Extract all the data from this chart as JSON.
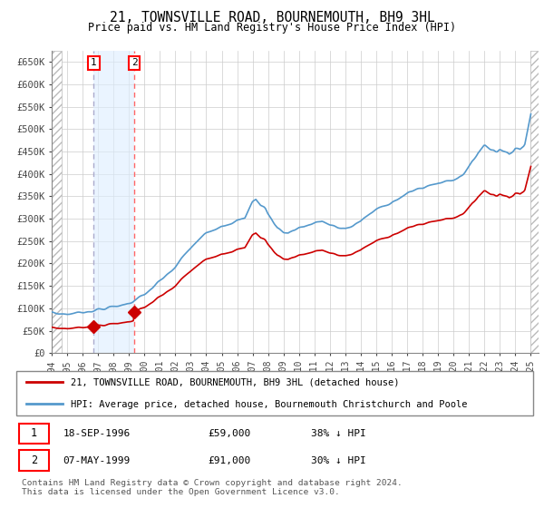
{
  "title": "21, TOWNSVILLE ROAD, BOURNEMOUTH, BH9 3HL",
  "subtitle": "Price paid vs. HM Land Registry's House Price Index (HPI)",
  "ylim": [
    0,
    675000
  ],
  "sale1_date": 1996.72,
  "sale1_price": 59000,
  "sale2_date": 1999.35,
  "sale2_price": 91000,
  "legend_line1": "21, TOWNSVILLE ROAD, BOURNEMOUTH, BH9 3HL (detached house)",
  "legend_line2": "HPI: Average price, detached house, Bournemouth Christchurch and Poole",
  "footnote": "Contains HM Land Registry data © Crown copyright and database right 2024.\nThis data is licensed under the Open Government Licence v3.0.",
  "hpi_color": "#5599cc",
  "price_color": "#cc0000",
  "vline1_color": "#aaaacc",
  "vline2_color": "#ff6666",
  "shade_color": "#ddeeff",
  "grid_color": "#cccccc",
  "background_color": "#ffffff",
  "hpi_knots_x": [
    1994.0,
    1994.5,
    1995.0,
    1995.5,
    1996.0,
    1996.5,
    1997.0,
    1997.5,
    1998.0,
    1998.5,
    1999.0,
    1999.5,
    2000.0,
    2000.5,
    2001.0,
    2001.5,
    2002.0,
    2002.5,
    2003.0,
    2003.5,
    2004.0,
    2004.5,
    2005.0,
    2005.5,
    2006.0,
    2006.5,
    2007.0,
    2007.2,
    2007.5,
    2007.8,
    2008.0,
    2008.3,
    2008.6,
    2009.0,
    2009.3,
    2009.6,
    2010.0,
    2010.5,
    2011.0,
    2011.5,
    2012.0,
    2012.5,
    2013.0,
    2013.5,
    2014.0,
    2014.5,
    2015.0,
    2015.5,
    2016.0,
    2016.5,
    2017.0,
    2017.5,
    2018.0,
    2018.3,
    2018.6,
    2018.9,
    2019.0,
    2019.3,
    2019.6,
    2020.0,
    2020.3,
    2020.6,
    2021.0,
    2021.3,
    2021.6,
    2022.0,
    2022.2,
    2022.4,
    2022.6,
    2022.8,
    2023.0,
    2023.3,
    2023.6,
    2024.0,
    2024.3,
    2024.6,
    2025.0
  ],
  "hpi_knots_y": [
    90000,
    88000,
    87000,
    89000,
    92000,
    94000,
    97000,
    100000,
    103000,
    107000,
    112000,
    120000,
    130000,
    145000,
    160000,
    175000,
    192000,
    215000,
    235000,
    252000,
    268000,
    278000,
    285000,
    290000,
    295000,
    300000,
    340000,
    345000,
    330000,
    325000,
    310000,
    295000,
    280000,
    270000,
    268000,
    275000,
    280000,
    285000,
    290000,
    295000,
    285000,
    280000,
    278000,
    285000,
    295000,
    308000,
    320000,
    330000,
    338000,
    345000,
    355000,
    365000,
    370000,
    373000,
    375000,
    378000,
    380000,
    382000,
    385000,
    388000,
    392000,
    400000,
    415000,
    430000,
    450000,
    465000,
    460000,
    455000,
    455000,
    450000,
    455000,
    450000,
    445000,
    460000,
    455000,
    465000,
    530000
  ],
  "ytick_vals": [
    0,
    50000,
    100000,
    150000,
    200000,
    250000,
    300000,
    350000,
    400000,
    450000,
    500000,
    550000,
    600000,
    650000
  ],
  "ytick_labels": [
    "£0",
    "£50K",
    "£100K",
    "£150K",
    "£200K",
    "£250K",
    "£300K",
    "£350K",
    "£400K",
    "£450K",
    "£500K",
    "£550K",
    "£600K",
    "£650K"
  ]
}
